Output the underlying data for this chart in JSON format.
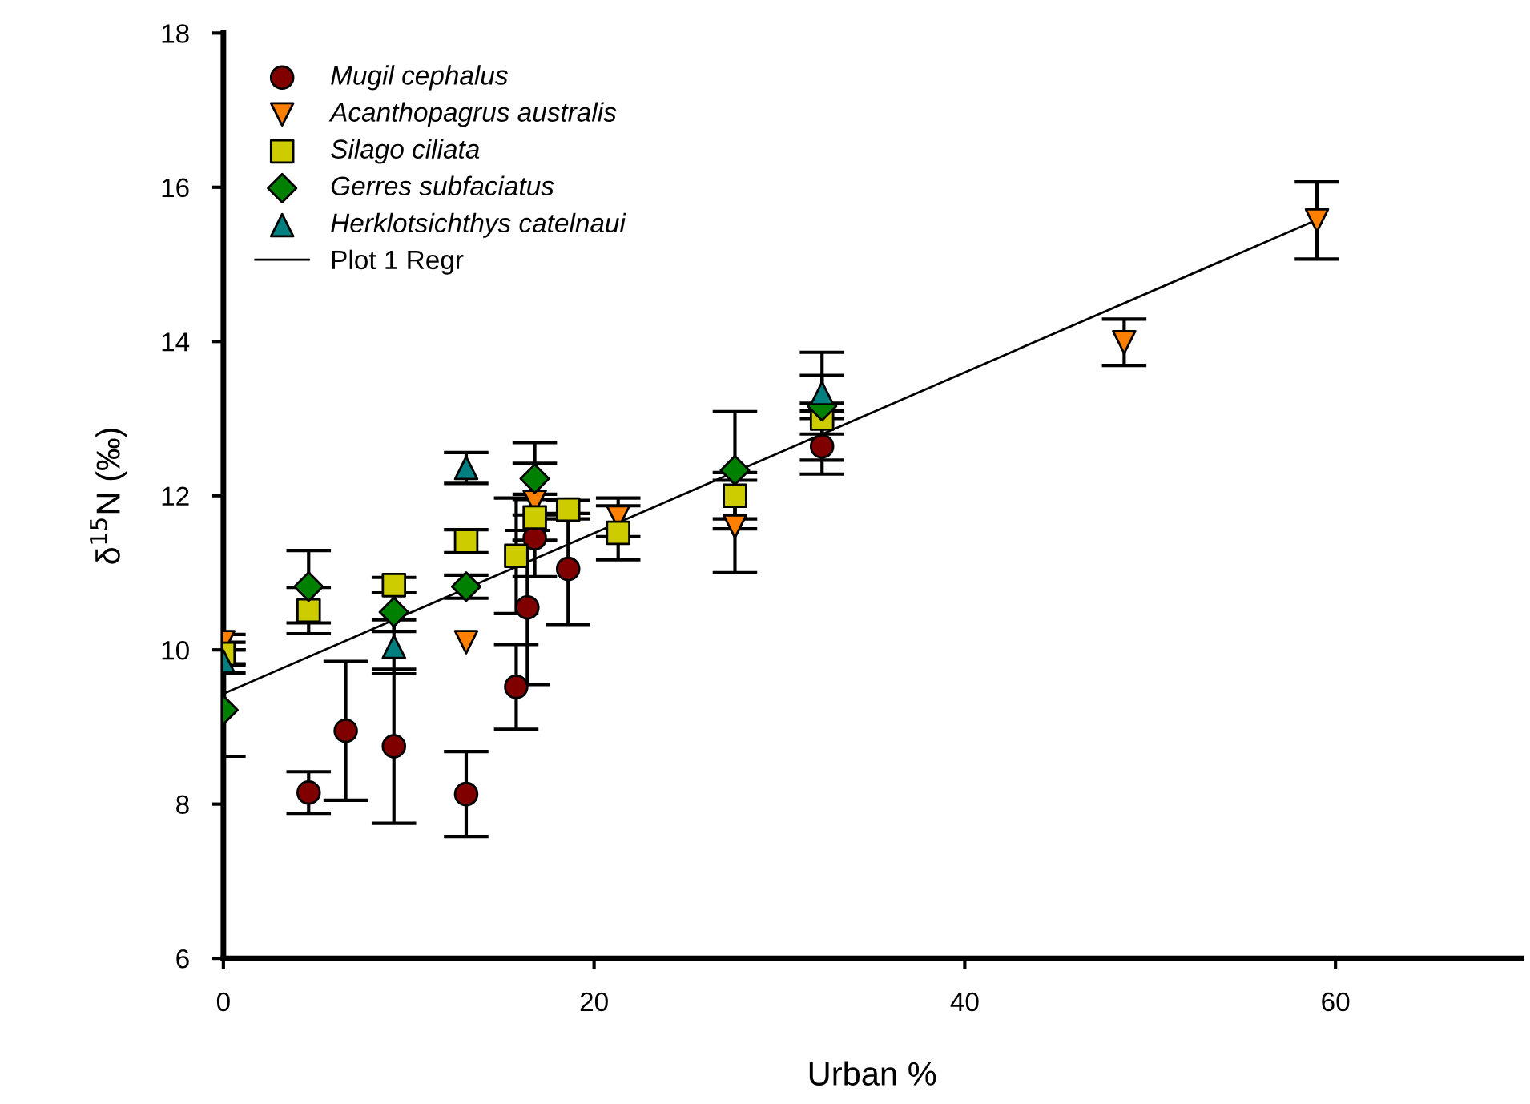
{
  "chart_data": {
    "type": "scatter",
    "xlabel": "Urban %",
    "ylabel": "δ$^{15}$N (‰)",
    "xlim": [
      0,
      70
    ],
    "ylim": [
      6,
      18
    ],
    "xticks": [
      0,
      20,
      40,
      60
    ],
    "yticks": [
      6,
      8,
      10,
      12,
      14,
      16,
      18
    ],
    "grid": false,
    "legend": "top left",
    "series": [
      {
        "name": "Mugil cephalus",
        "color": "#800000",
        "marker": "circle",
        "x": [
          4.6,
          6.6,
          9.2,
          13.1,
          15.8,
          16.4,
          16.8,
          18.6,
          32.3
        ],
        "values": [
          8.15,
          8.95,
          8.75,
          8.13,
          9.52,
          10.55,
          11.45,
          11.05,
          12.64
        ],
        "errors": [
          0.27,
          0.9,
          1.0,
          0.55,
          0.55,
          1.0,
          0.5,
          0.72,
          0.36
        ]
      },
      {
        "name": "Acanthopagrus australis",
        "color": "#ff8000",
        "marker": "triangle_down",
        "x": [
          0,
          13.1,
          16.8,
          21.3,
          27.6,
          48.6,
          59
        ],
        "values": [
          10.1,
          10.1,
          11.92,
          11.72,
          11.6,
          13.99,
          15.57
        ],
        "errors": [
          0.1,
          null,
          0.5,
          0.25,
          0.6,
          0.3,
          0.5
        ]
      },
      {
        "name": "Silago ciliata",
        "color": "#cccc00",
        "marker": "square",
        "x": [
          0,
          4.6,
          9.2,
          13.1,
          15.8,
          16.8,
          18.6,
          21.3,
          27.6,
          32.3
        ],
        "values": [
          9.95,
          10.51,
          10.84,
          11.41,
          11.22,
          11.72,
          11.82,
          11.52,
          12.0,
          13.0
        ],
        "errors": [
          0.15,
          0.3,
          0.1,
          0.15,
          0.75,
          0.3,
          0.12,
          0.35,
          0.3,
          0.2
        ]
      },
      {
        "name": "Gerres subfaciatus",
        "color": "#008000",
        "marker": "diamond",
        "x": [
          0,
          4.6,
          9.2,
          13.1,
          16.8,
          27.6,
          32.3
        ],
        "values": [
          9.22,
          10.82,
          10.49,
          10.82,
          12.22,
          12.33,
          13.16
        ],
        "errors": [
          0.6,
          0.47,
          0.25,
          0.15,
          0.47,
          0.76,
          0.7
        ]
      },
      {
        "name": "Herklotsichthys catelnaui",
        "color": "#008080",
        "marker": "triangle",
        "x": [
          0,
          9.2,
          13.1,
          32.3
        ],
        "values": [
          9.85,
          10.04,
          12.36,
          13.33
        ],
        "errors": [
          0.15,
          0.35,
          0.2,
          0.23
        ]
      },
      {
        "name": "Plot 1 Regr",
        "type": "line",
        "color": "#000000",
        "marker": "none",
        "line_style": "solid",
        "x": [
          0,
          59
        ],
        "values": [
          9.43,
          15.58
        ]
      }
    ]
  }
}
